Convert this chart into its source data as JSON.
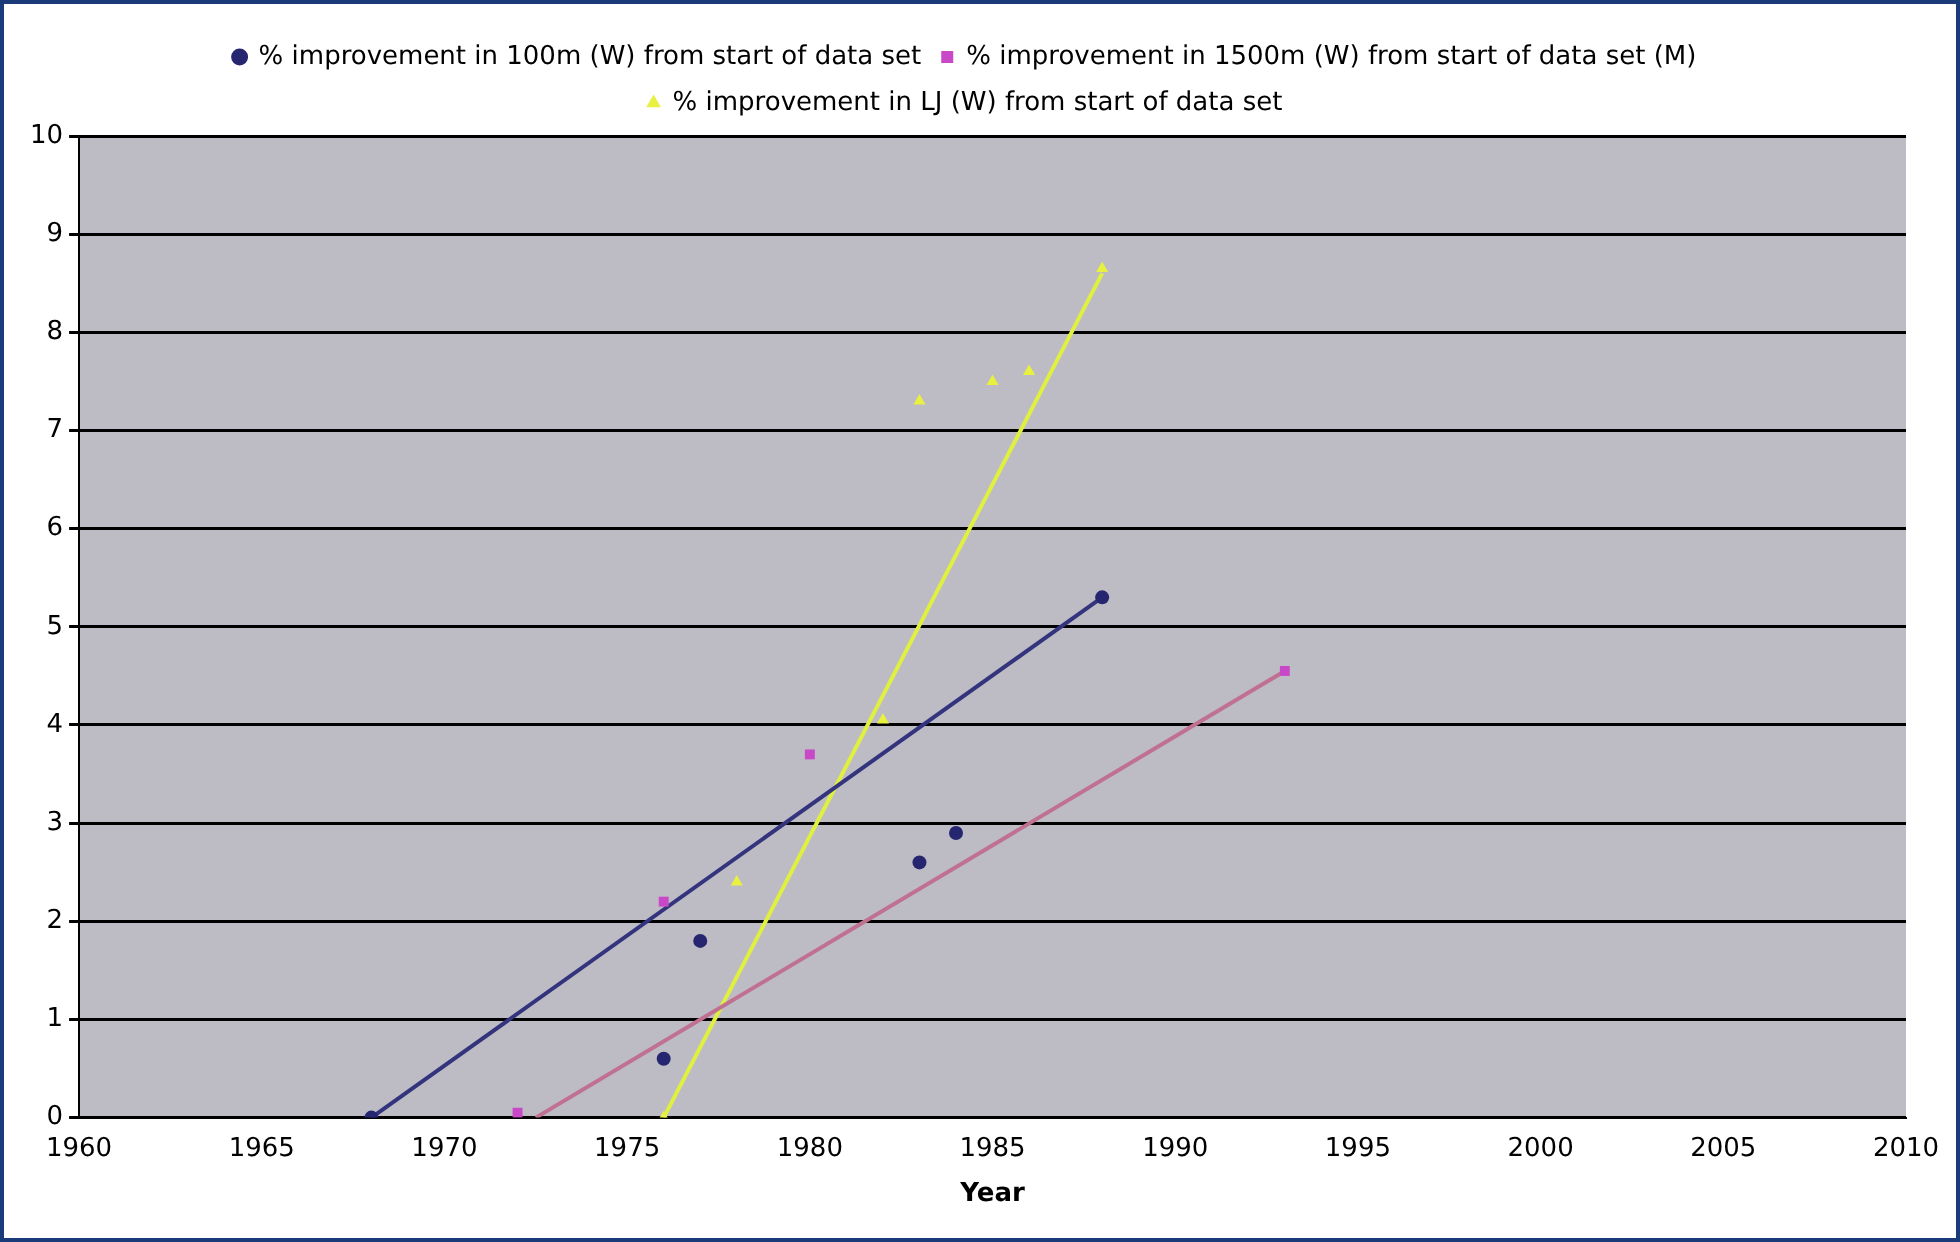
{
  "chart_data": {
    "type": "scatter",
    "xlabel": "Year",
    "xlim": [
      1960,
      2010
    ],
    "xticks": [
      1960,
      1965,
      1970,
      1975,
      1980,
      1985,
      1990,
      1995,
      2000,
      2005,
      2010
    ],
    "ylim": [
      0,
      10
    ],
    "yticks": [
      0,
      1,
      2,
      3,
      4,
      5,
      6,
      7,
      8,
      9,
      10
    ],
    "grid": "y",
    "legend": "top",
    "series": [
      {
        "name": "% improvement in 100m (W) from start of data set",
        "color": "#262670",
        "marker": "circle",
        "x": [
          1968,
          1976,
          1977,
          1983,
          1984,
          1988
        ],
        "values": [
          0,
          0.6,
          1.8,
          2.6,
          2.9,
          5.3
        ]
      },
      {
        "name": "% improvement in 1500m (W) from start of data set (M)",
        "color": "#c848c8",
        "marker": "square",
        "x": [
          1972,
          1976,
          1980,
          1993
        ],
        "values": [
          0.05,
          2.2,
          3.7,
          4.55
        ]
      },
      {
        "name": "% improvement in LJ (W) from start of data set",
        "color": "#e8f040",
        "marker": "triangle",
        "x": [
          1976,
          1978,
          1982,
          1983,
          1985,
          1986,
          1988
        ],
        "values": [
          0,
          2.4,
          4.05,
          7.3,
          7.5,
          7.6,
          8.65
        ]
      },
      {
        "type": "line",
        "marker": "none",
        "color": "#34347e",
        "x": [
          1968,
          1988
        ],
        "values": [
          0,
          5.3
        ]
      },
      {
        "type": "line",
        "marker": "none",
        "color": "#c07090",
        "x": [
          1972.5,
          1993
        ],
        "values": [
          0,
          4.55
        ]
      },
      {
        "type": "line",
        "marker": "none",
        "color": "#e0f040",
        "x": [
          1976,
          1988
        ],
        "values": [
          0,
          8.6
        ]
      }
    ]
  }
}
